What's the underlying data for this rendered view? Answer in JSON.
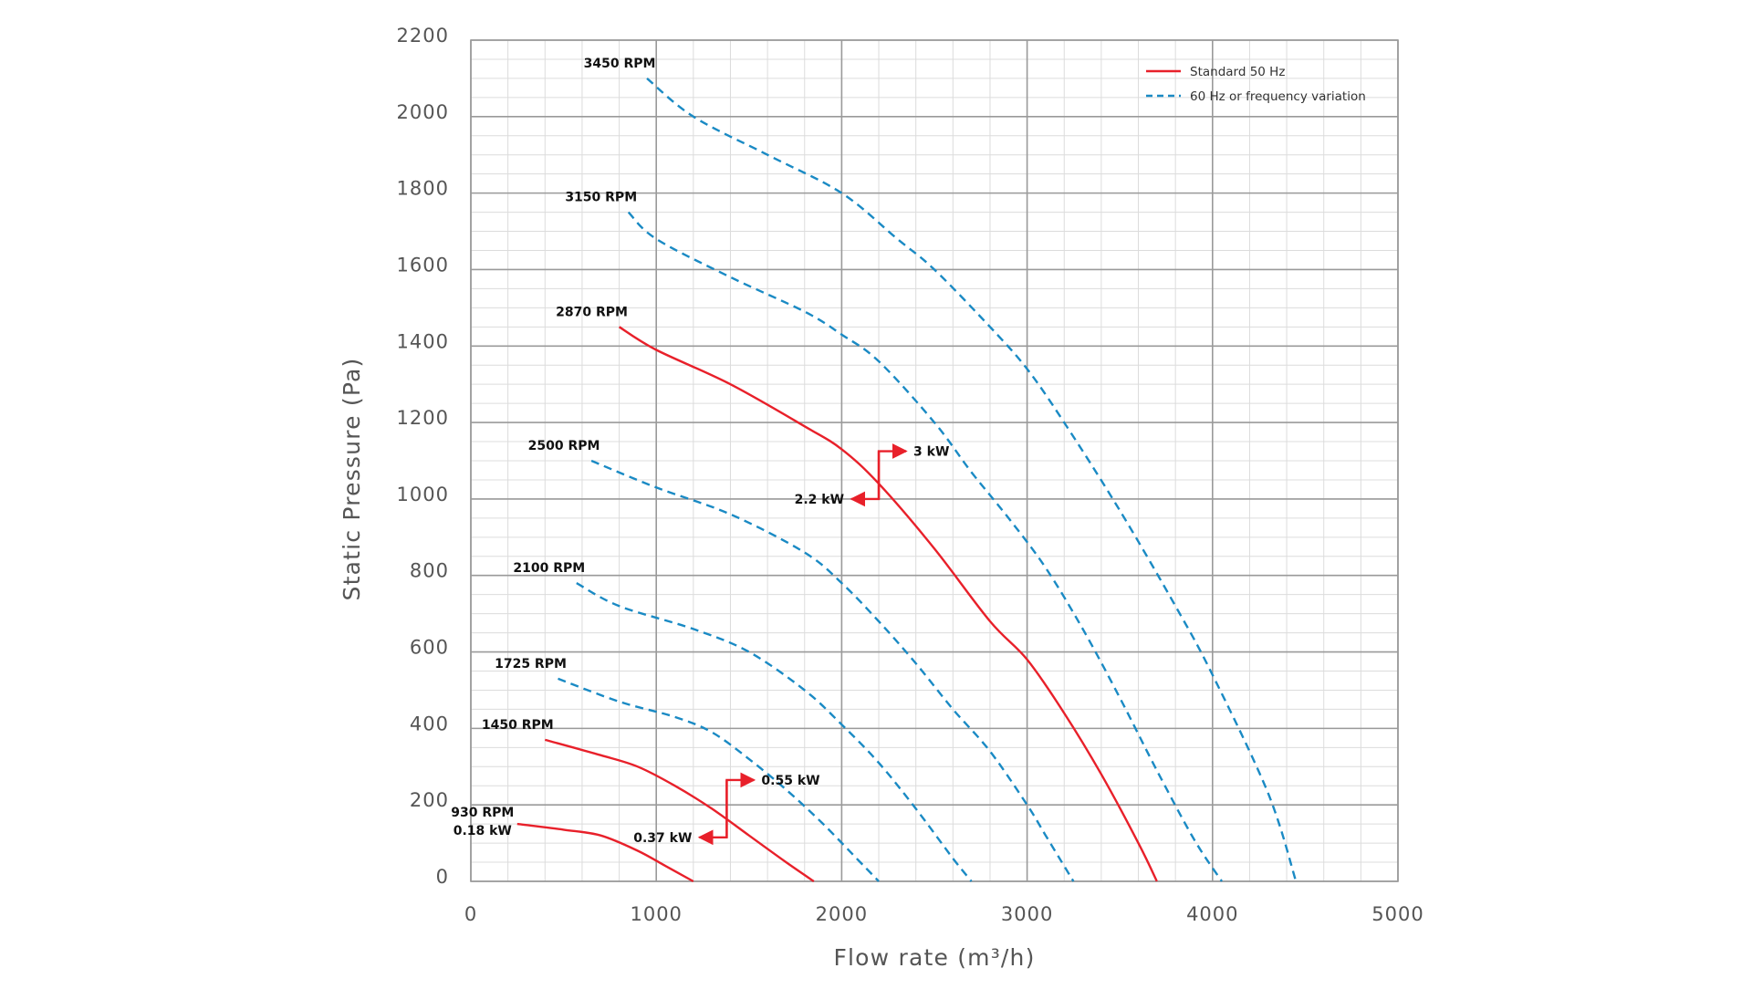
{
  "chart_data": {
    "type": "line",
    "title": "",
    "xlabel": "Flow rate (m³/h)",
    "ylabel": "Static Pressure (Pa)",
    "xlim": [
      0,
      5000
    ],
    "ylim": [
      0,
      2200
    ],
    "x_ticks": [
      "0",
      "1000",
      "2000",
      "3000",
      "4000",
      "5000"
    ],
    "y_ticks": [
      "0",
      "200",
      "400",
      "600",
      "800",
      "1000",
      "1200",
      "1400",
      "1600",
      "1800",
      "2000",
      "2200"
    ],
    "x_minor_step": 200,
    "y_minor_step": 50,
    "grid": true,
    "legend_position": "top-right",
    "legend": [
      {
        "label": "Standard 50 Hz",
        "style": "solid",
        "color": "#e8202a"
      },
      {
        "label": "60 Hz or frequency variation",
        "style": "dashed",
        "color": "#1a8ac4"
      }
    ],
    "series": [
      {
        "name": "3450 RPM",
        "style": "dashed",
        "label": "3450 RPM",
        "x": [
          950,
          1200,
          1600,
          2000,
          2300,
          2500,
          2800,
          3000,
          3200,
          3500,
          3800,
          4000,
          4300,
          4450
        ],
        "y": [
          2100,
          2000,
          1900,
          1800,
          1680,
          1600,
          1450,
          1340,
          1200,
          970,
          720,
          540,
          230,
          0
        ]
      },
      {
        "name": "3150 RPM",
        "style": "dashed",
        "label": "3150 RPM",
        "x": [
          850,
          1000,
          1400,
          1800,
          2000,
          2200,
          2500,
          2700,
          2900,
          3100,
          3300,
          3500,
          3700,
          3900,
          4050
        ],
        "y": [
          1750,
          1680,
          1580,
          1490,
          1430,
          1360,
          1200,
          1070,
          950,
          820,
          660,
          480,
          290,
          110,
          0
        ]
      },
      {
        "name": "2870 RPM",
        "style": "solid",
        "label": "2870 RPM",
        "x": [
          800,
          1000,
          1400,
          1800,
          2000,
          2200,
          2500,
          2800,
          3000,
          3200,
          3400,
          3600,
          3700
        ],
        "y": [
          1450,
          1390,
          1300,
          1190,
          1130,
          1040,
          870,
          680,
          580,
          440,
          280,
          100,
          0
        ]
      },
      {
        "name": "2500 RPM",
        "style": "dashed",
        "label": "2500 RPM",
        "x": [
          650,
          1000,
          1400,
          1800,
          2000,
          2200,
          2400,
          2600,
          2800,
          3000,
          3100,
          3200,
          3250
        ],
        "y": [
          1100,
          1030,
          960,
          860,
          780,
          680,
          570,
          450,
          340,
          200,
          120,
          40,
          0
        ]
      },
      {
        "name": "2100 RPM",
        "style": "dashed",
        "label": "2100 RPM",
        "x": [
          570,
          800,
          1200,
          1500,
          1800,
          2000,
          2200,
          2400,
          2600,
          2700
        ],
        "y": [
          780,
          720,
          660,
          600,
          500,
          410,
          310,
          190,
          60,
          0
        ]
      },
      {
        "name": "1725 RPM",
        "style": "dashed",
        "label": "1725 RPM",
        "x": [
          470,
          800,
          1100,
          1300,
          1500,
          1700,
          1900,
          2100,
          2200
        ],
        "y": [
          530,
          470,
          430,
          390,
          320,
          240,
          150,
          50,
          0
        ]
      },
      {
        "name": "1450 RPM",
        "style": "solid",
        "label": "1450 RPM",
        "x": [
          400,
          700,
          900,
          1100,
          1300,
          1500,
          1700,
          1850
        ],
        "y": [
          370,
          330,
          300,
          250,
          190,
          120,
          50,
          0
        ]
      },
      {
        "name": "930 RPM",
        "style": "solid",
        "label": "930 RPM",
        "sublabel": "0.18 kW",
        "x": [
          250,
          500,
          700,
          900,
          1050,
          1200
        ],
        "y": [
          150,
          135,
          120,
          80,
          40,
          0
        ]
      }
    ],
    "annotations": [
      {
        "type": "power-arrow",
        "x": 2200,
        "y_top": 1125,
        "y_bottom": 1000,
        "upper_label": "3 kW",
        "lower_label": "2.2 kW"
      },
      {
        "type": "power-arrow",
        "x": 1380,
        "y_top": 265,
        "y_bottom": 115,
        "upper_label": "0.55 kW",
        "lower_label": "0.37 kW"
      }
    ]
  }
}
